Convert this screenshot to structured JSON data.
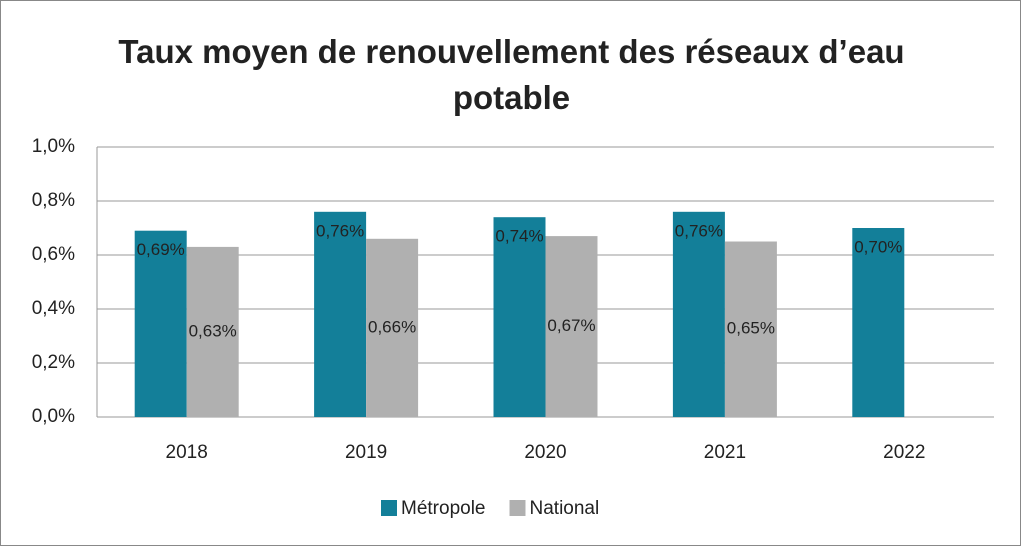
{
  "chart_data": {
    "type": "bar",
    "title": "Taux moyen de renouvellement des réseaux d’eau potable",
    "categories": [
      "2018",
      "2019",
      "2020",
      "2021",
      "2022"
    ],
    "series": [
      {
        "name": "Métropole",
        "color": "#137f99",
        "values": [
          0.69,
          0.76,
          0.74,
          0.76,
          0.7
        ],
        "value_labels": [
          "0,69%",
          "0,76%",
          "0,74%",
          "0,76%",
          "0,70%"
        ]
      },
      {
        "name": "National",
        "color": "#b0b0b0",
        "values": [
          0.63,
          0.66,
          0.67,
          0.65,
          null
        ],
        "value_labels": [
          "0,63%",
          "0,66%",
          "0,67%",
          "0,65%",
          null
        ]
      }
    ],
    "ylim": [
      0,
      1.0
    ],
    "yticks": [
      {
        "value": 0,
        "label": "0,0%"
      },
      {
        "value": 0.2,
        "label": "0,2%"
      },
      {
        "value": 0.4,
        "label": "0,4%"
      },
      {
        "value": 0.6,
        "label": "0,6%"
      },
      {
        "value": 0.8,
        "label": "0,8%"
      },
      {
        "value": 1.0,
        "label": "1,0%"
      }
    ],
    "grid": true,
    "legend": "bottom"
  }
}
